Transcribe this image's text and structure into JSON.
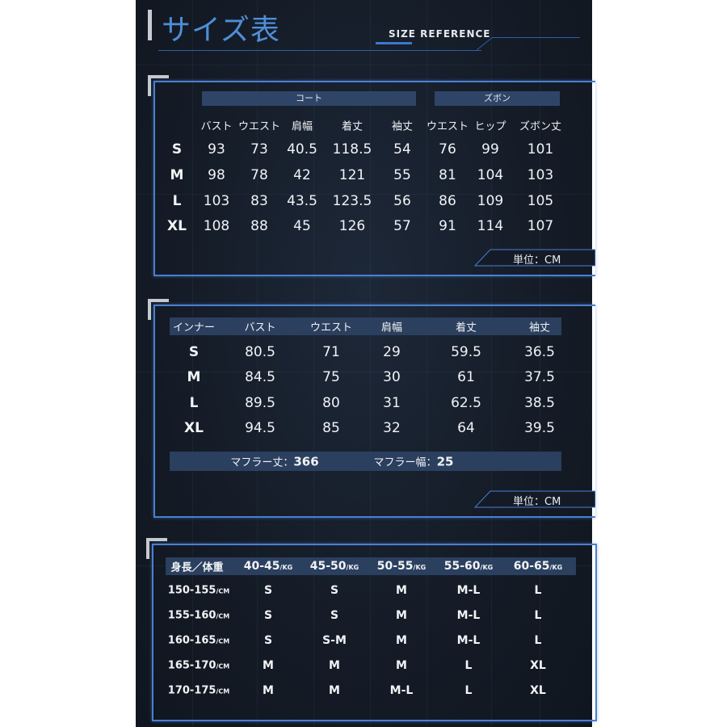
{
  "header": {
    "title": "サイズ表",
    "subtitle": "SIZE REFERENCE"
  },
  "coat_pants": {
    "group_coat": "コート",
    "group_pants": "ズボン",
    "columns": [
      "バスト",
      "ウエスト",
      "肩幅",
      "着丈",
      "袖丈",
      "ウエスト",
      "ヒップ",
      "ズボン丈"
    ],
    "rows": [
      {
        "size": "S",
        "values": [
          "93",
          "73",
          "40.5",
          "118.5",
          "54",
          "76",
          "99",
          "101"
        ]
      },
      {
        "size": "M",
        "values": [
          "98",
          "78",
          "42",
          "121",
          "55",
          "81",
          "104",
          "103"
        ]
      },
      {
        "size": "L",
        "values": [
          "103",
          "83",
          "43.5",
          "123.5",
          "56",
          "86",
          "109",
          "105"
        ]
      },
      {
        "size": "XL",
        "values": [
          "108",
          "88",
          "45",
          "126",
          "57",
          "91",
          "114",
          "107"
        ]
      }
    ],
    "unit": "単位：CM"
  },
  "inner": {
    "columns": [
      "インナー",
      "バスト",
      "ウエスト",
      "肩幅",
      "着丈",
      "袖丈"
    ],
    "rows": [
      {
        "size": "S",
        "values": [
          "80.5",
          "71",
          "29",
          "59.5",
          "36.5"
        ]
      },
      {
        "size": "M",
        "values": [
          "84.5",
          "75",
          "30",
          "61",
          "37.5"
        ]
      },
      {
        "size": "L",
        "values": [
          "89.5",
          "80",
          "31",
          "62.5",
          "38.5"
        ]
      },
      {
        "size": "XL",
        "values": [
          "94.5",
          "85",
          "32",
          "64",
          "39.5"
        ]
      }
    ],
    "muffler_length_label": "マフラー丈：",
    "muffler_length": "366",
    "muffler_width_label": "マフラー幅：",
    "muffler_width": "25",
    "unit": "単位：CM"
  },
  "guide": {
    "corner_label": "身長／体重",
    "weights": [
      "40-45",
      "45-50",
      "50-55",
      "55-60",
      "60-65"
    ],
    "weight_unit": "/KG",
    "height_unit": "/CM",
    "rows": [
      {
        "height": "150-155",
        "sizes": [
          "S",
          "S",
          "M",
          "M-L",
          "L"
        ]
      },
      {
        "height": "155-160",
        "sizes": [
          "S",
          "S",
          "M",
          "M-L",
          "L"
        ]
      },
      {
        "height": "160-165",
        "sizes": [
          "S",
          "S-M",
          "M",
          "M-L",
          "L"
        ]
      },
      {
        "height": "165-170",
        "sizes": [
          "M",
          "M",
          "M",
          "L",
          "XL"
        ]
      },
      {
        "height": "170-175",
        "sizes": [
          "M",
          "M",
          "M-L",
          "L",
          "XL"
        ]
      }
    ]
  },
  "colors": {
    "accent": "#4f8ed8",
    "border": "#4a7fd0",
    "background": "#141b26",
    "header_bar": "#2f4568"
  }
}
